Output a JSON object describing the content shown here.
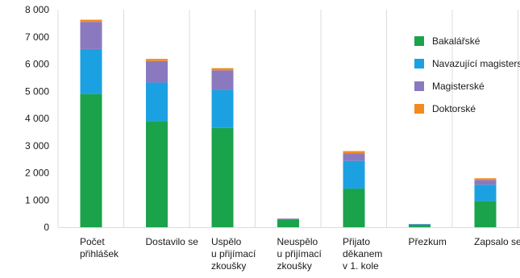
{
  "chart_data": {
    "type": "bar",
    "stacked": true,
    "title": "",
    "xlabel": "",
    "ylabel": "",
    "ylim": [
      0,
      8000
    ],
    "yticks": [
      "0",
      "1 000",
      "2 000",
      "3 000",
      "4 000",
      "5 000",
      "6 000",
      "7 000",
      "8 000"
    ],
    "ytick_values": [
      0,
      1000,
      2000,
      3000,
      4000,
      5000,
      6000,
      7000,
      8000
    ],
    "grid": "vertical lines between categories",
    "legend_position": "top-right",
    "categories": [
      [
        "Počet",
        "přihlášek"
      ],
      [
        "Dostavilo se"
      ],
      [
        "Uspělo",
        "u přijímací",
        "zkoušky"
      ],
      [
        "Neuspělo",
        "u přijímací",
        "zkoušky"
      ],
      [
        "Přijato",
        "děkanem",
        "v 1. kole"
      ],
      [
        "Přezkum"
      ],
      [
        "Zapsalo se"
      ]
    ],
    "series": [
      {
        "name": "Bakalářské",
        "color": "#1aa34a",
        "values": [
          4900,
          3900,
          3650,
          280,
          1420,
          90,
          960
        ]
      },
      {
        "name": "Navazující magisterské",
        "color": "#1ba1e2",
        "values": [
          1650,
          1420,
          1400,
          20,
          1020,
          20,
          600
        ]
      },
      {
        "name": "Magisterské",
        "color": "#8b79bf",
        "values": [
          1000,
          790,
          720,
          20,
          270,
          10,
          180
        ]
      },
      {
        "name": "Doktorské",
        "color": "#f38b1c",
        "values": [
          80,
          80,
          80,
          0,
          90,
          0,
          60
        ]
      }
    ]
  }
}
